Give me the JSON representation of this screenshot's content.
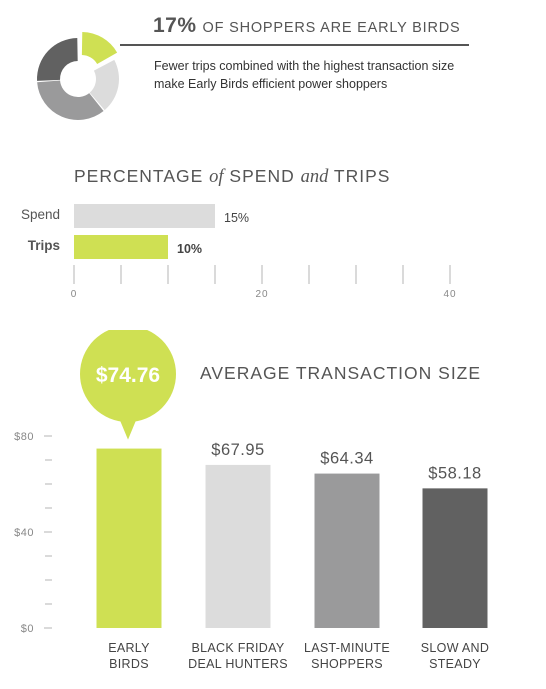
{
  "header": {
    "percent": "17%",
    "headline": "OF SHOPPERS ARE EARLY BIRDS",
    "subtext": "Fewer trips combined with the highest transaction size make Early Birds efficient power shoppers"
  },
  "section1": {
    "title_part1": "PERCENTAGE",
    "title_of": "of",
    "title_part2": "SPEND",
    "title_and": "and",
    "title_part3": "TRIPS"
  },
  "section2": {
    "title": "AVERAGE TRANSACTION SIZE"
  },
  "colors": {
    "lime": "#cfe053",
    "light_gray": "#dcdcdc",
    "mid_gray": "#9a9a9b",
    "dark_gray": "#616161",
    "text": "#555555",
    "axis": "#b5b5b5"
  },
  "chart_data": [
    {
      "type": "pie",
      "style": "donut",
      "slices": [
        {
          "label": "Early Birds",
          "value": 17,
          "color": "#cfe053",
          "exploded": true
        },
        {
          "label": "Black Friday Deal Hunters",
          "value": 22,
          "color": "#dcdcdc"
        },
        {
          "label": "Last-Minute Shoppers",
          "value": 35,
          "color": "#9a9a9b"
        },
        {
          "label": "Slow and Steady",
          "value": 26,
          "color": "#616161"
        }
      ]
    },
    {
      "type": "bar",
      "orientation": "horizontal",
      "title": "PERCENTAGE of SPEND and TRIPS",
      "categories": [
        "Spend",
        "Trips"
      ],
      "values": [
        15,
        10
      ],
      "value_labels": [
        "15%",
        "10%"
      ],
      "colors": [
        "#dcdcdc",
        "#cfe053"
      ],
      "xlim": [
        0,
        40
      ],
      "xticks": [
        0,
        20,
        40
      ],
      "xtick_labels": [
        "0",
        "20",
        "40"
      ],
      "grid": false
    },
    {
      "type": "bar",
      "title": "AVERAGE TRANSACTION SIZE",
      "categories": [
        [
          "EARLY",
          "BIRDS"
        ],
        [
          "BLACK FRIDAY",
          "DEAL HUNTERS"
        ],
        [
          "LAST-MINUTE",
          "SHOPPERS"
        ],
        [
          "SLOW AND",
          "STEADY"
        ]
      ],
      "values": [
        74.76,
        67.95,
        64.34,
        58.18
      ],
      "value_labels": [
        "$74.76",
        "$67.95",
        "$64.34",
        "$58.18"
      ],
      "highlight_index": 0,
      "colors": [
        "#cfe053",
        "#dcdcdc",
        "#9a9a9b",
        "#616161"
      ],
      "ylim": [
        0,
        80
      ],
      "yticks": [
        0,
        40,
        80
      ],
      "ytick_labels": [
        "$0",
        "$40",
        "$80"
      ],
      "ytick_minor_step": 10,
      "grid": false
    }
  ]
}
